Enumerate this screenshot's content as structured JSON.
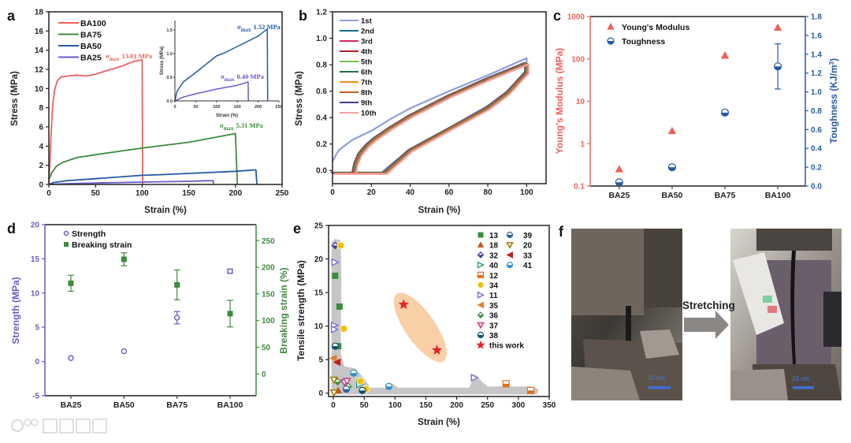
{
  "chart_data": [
    {
      "panel": "a",
      "type": "line",
      "xlabel": "Strain (%)",
      "ylabel": "Stress (MPa)",
      "xlim": [
        0,
        250
      ],
      "ylim": [
        0,
        18
      ],
      "xticks": [
        0,
        50,
        100,
        150,
        200,
        250
      ],
      "yticks": [
        0,
        2,
        4,
        6,
        8,
        10,
        12,
        14,
        16,
        18
      ],
      "series": [
        {
          "name": "BA100",
          "color": "#f0605a",
          "points": [
            [
              0,
              0
            ],
            [
              1,
              2
            ],
            [
              2,
              4.5
            ],
            [
              4,
              8
            ],
            [
              6,
              9.8
            ],
            [
              9,
              10.8
            ],
            [
              13,
              11.2
            ],
            [
              20,
              11.3
            ],
            [
              30,
              11.4
            ],
            [
              40,
              11.3
            ],
            [
              50,
              11.5
            ],
            [
              60,
              11.8
            ],
            [
              70,
              12.1
            ],
            [
              80,
              12.4
            ],
            [
              90,
              12.8
            ],
            [
              100,
              13.01
            ],
            [
              100.5,
              0
            ]
          ]
        },
        {
          "name": "BA75",
          "color": "#3d8b3d",
          "points": [
            [
              0,
              0.5
            ],
            [
              3,
              1.2
            ],
            [
              8,
              1.9
            ],
            [
              15,
              2.3
            ],
            [
              30,
              2.8
            ],
            [
              50,
              3.1
            ],
            [
              75,
              3.45
            ],
            [
              100,
              3.8
            ],
            [
              125,
              4.1
            ],
            [
              150,
              4.4
            ],
            [
              175,
              4.85
            ],
            [
              200,
              5.31
            ],
            [
              202,
              0
            ]
          ]
        },
        {
          "name": "BA50",
          "color": "#2559a5",
          "points": [
            [
              0,
              0
            ],
            [
              5,
              0.2
            ],
            [
              20,
              0.4
            ],
            [
              50,
              0.6
            ],
            [
              100,
              0.95
            ],
            [
              120,
              1.02
            ],
            [
              150,
              1.15
            ],
            [
              200,
              1.37
            ],
            [
              222,
              1.52
            ],
            [
              223,
              0
            ]
          ]
        },
        {
          "name": "BA25",
          "color": "#6a5ac8",
          "points": [
            [
              0,
              0
            ],
            [
              20,
              0.08
            ],
            [
              50,
              0.15
            ],
            [
              100,
              0.25
            ],
            [
              150,
              0.33
            ],
            [
              176,
              0.4
            ],
            [
              176.5,
              0
            ]
          ]
        }
      ],
      "annotations": [
        {
          "series": "BA100",
          "sym": "σ",
          "sub": "max",
          "text": "13.01 MPa"
        },
        {
          "series": "BA75",
          "sym": "σ",
          "sub": "max",
          "text": "5.31 MPa"
        }
      ],
      "inset": {
        "xlabel": "Strain (%)",
        "ylabel": "Stress (MPa)",
        "xlim": [
          0,
          250
        ],
        "ylim": [
          0,
          1.7
        ],
        "xticks": [
          0,
          50,
          100,
          150,
          200,
          250
        ],
        "yticks": [
          "0.0",
          "0.5",
          "1.0",
          "1.5"
        ],
        "series_shown": [
          "BA50",
          "BA25"
        ],
        "annotations": [
          {
            "series": "BA50",
            "sym": "σ",
            "sub": "max",
            "text": "1.52 MPa"
          },
          {
            "series": "BA25",
            "sym": "σ",
            "sub": "max",
            "text": "0.40 MPa"
          }
        ]
      }
    },
    {
      "panel": "b",
      "type": "line",
      "xlabel": "Strain (%)",
      "ylabel": "Stress (MPa)",
      "xlim": [
        0,
        110
      ],
      "ylim": [
        -0.1,
        1.2
      ],
      "xticks": [
        0,
        20,
        40,
        60,
        80,
        100
      ],
      "yticks": [
        "0.0",
        "0.2",
        "0.4",
        "0.6",
        "0.8",
        "1.0",
        "1.2"
      ],
      "first_cycle": [
        [
          0,
          0.07
        ],
        [
          3,
          0.15
        ],
        [
          10,
          0.23
        ],
        [
          20,
          0.3
        ],
        [
          30,
          0.39
        ],
        [
          40,
          0.47
        ],
        [
          60,
          0.6
        ],
        [
          80,
          0.72
        ],
        [
          100,
          0.85
        ],
        [
          100,
          0.74
        ],
        [
          90,
          0.6
        ],
        [
          80,
          0.49
        ],
        [
          60,
          0.32
        ],
        [
          40,
          0.16
        ],
        [
          28,
          0.02
        ],
        [
          25,
          -0.02
        ]
      ],
      "later_cycles": [
        [
          0,
          -0.02
        ],
        [
          11,
          -0.02
        ],
        [
          12,
          0.05
        ],
        [
          14,
          0.12
        ],
        [
          18,
          0.19
        ],
        [
          22,
          0.24
        ],
        [
          30,
          0.32
        ],
        [
          40,
          0.41
        ],
        [
          60,
          0.56
        ],
        [
          80,
          0.69
        ],
        [
          100,
          0.81
        ],
        [
          100,
          0.74
        ],
        [
          90,
          0.58
        ],
        [
          80,
          0.47
        ],
        [
          60,
          0.31
        ],
        [
          40,
          0.15
        ],
        [
          27,
          -0.02
        ],
        [
          0,
          -0.02
        ]
      ],
      "series": [
        {
          "name": "1st",
          "color": "#8e9ee0"
        },
        {
          "name": "2nd",
          "color": "#1b6a8c"
        },
        {
          "name": "3rd",
          "color": "#d42a6a"
        },
        {
          "name": "4th",
          "color": "#a8242a"
        },
        {
          "name": "5th",
          "color": "#74c34a"
        },
        {
          "name": "6th",
          "color": "#1f7040"
        },
        {
          "name": "7th",
          "color": "#f08a22"
        },
        {
          "name": "8th",
          "color": "#c25a1e"
        },
        {
          "name": "9th",
          "color": "#3e3e92"
        },
        {
          "name": "10th",
          "color": "#f4a2a0"
        }
      ]
    },
    {
      "panel": "c",
      "type": "scatter",
      "categories": [
        "BA25",
        "BA50",
        "BA75",
        "BA100"
      ],
      "ylabel": "Young's Modulus (MPa)",
      "yscale": "log",
      "ylim": [
        0.1,
        1000
      ],
      "yticks": [
        "0.1",
        "1",
        "10",
        "100",
        "1000"
      ],
      "y2label": "Toughness (KJ/m",
      "y2label_sup": "3",
      "y2label_end": ")",
      "y2lim": [
        0,
        1.8
      ],
      "y2ticks": [
        "0.0",
        "0.2",
        "0.4",
        "0.6",
        "0.8",
        "1.0",
        "1.2",
        "1.4",
        "1.6",
        "1.8"
      ],
      "series": [
        {
          "name": "Young's Modulus",
          "color": "#f0605a",
          "marker": "triangle",
          "axis": "left",
          "values": [
            0.25,
            2,
            120,
            550
          ]
        },
        {
          "name": "Toughness",
          "color": "#2559a5",
          "marker": "half-circle",
          "axis": "right",
          "values": [
            0.04,
            0.2,
            0.78,
            1.27
          ],
          "err": [
            0.01,
            0.01,
            0.02,
            0.24
          ]
        }
      ]
    },
    {
      "panel": "d",
      "type": "scatter",
      "categories": [
        "BA25",
        "BA50",
        "BA75",
        "BA100"
      ],
      "ylabel": "Strength (MPa)",
      "ylim": [
        -5,
        20
      ],
      "yticks": [
        "-5",
        "0",
        "5",
        "10",
        "15",
        "20"
      ],
      "y2label": "Breaking strain (%)",
      "y2lim": [
        -41,
        280
      ],
      "y2ticks": [
        "0",
        "50",
        "100",
        "150",
        "200",
        "250"
      ],
      "series": [
        {
          "name": "Strength",
          "color": "#6a5ac8",
          "marker": "open-circle",
          "axis": "left",
          "values": [
            0.5,
            1.5,
            6.4,
            13.2
          ],
          "err": [
            0.1,
            0.1,
            0.9,
            0.3
          ]
        },
        {
          "name": "Breaking strain",
          "color": "#3d8b3d",
          "marker": "square",
          "axis": "right",
          "values": [
            170,
            215,
            167,
            113
          ],
          "err": [
            15,
            12,
            28,
            25
          ]
        }
      ]
    },
    {
      "panel": "e",
      "type": "scatter",
      "xlabel": "Strain (%)",
      "ylabel": "Tensile strength (MPa)",
      "xlim": [
        -7.7,
        350
      ],
      "ylim": [
        -0.5,
        25
      ],
      "xticks": [
        0,
        50,
        100,
        150,
        200,
        250,
        300,
        350
      ],
      "yticks": [
        0,
        5,
        10,
        15,
        20,
        25
      ],
      "series": [
        {
          "name": "13",
          "color": "#3d8b3d",
          "marker": "square",
          "points": [
            [
              3,
              17.5
            ],
            [
              10,
              12.9
            ],
            [
              8,
              7
            ]
          ]
        },
        {
          "name": "18",
          "color": "#c0561c",
          "marker": "triangle",
          "points": [
            [
              8,
              0.4
            ]
          ]
        },
        {
          "name": "32",
          "color": "#3a3a9a",
          "marker": "diamond",
          "points": [
            [
              3,
              22
            ]
          ]
        },
        {
          "name": "40",
          "color": "#2fa070",
          "marker": "right-triangle",
          "points": [
            [
              43,
              1.3
            ]
          ]
        },
        {
          "name": "12",
          "color": "#e07020",
          "marker": "half-square",
          "points": [
            [
              280,
              1.4
            ],
            [
              320,
              0.4
            ]
          ]
        },
        {
          "name": "34",
          "color": "#f0c000",
          "marker": "hexagon",
          "points": [
            [
              12,
              22
            ],
            [
              17,
              9.6
            ],
            [
              44,
              1.8
            ],
            [
              53,
              0.6
            ]
          ]
        },
        {
          "name": "11",
          "color": "#7070d0",
          "marker": "right-triangle",
          "points": [
            [
              3,
              19.5
            ],
            [
              2,
              10.1
            ],
            [
              2,
              9.5
            ],
            [
              229,
              2.3
            ]
          ]
        },
        {
          "name": "35",
          "color": "#e08030",
          "marker": "left-triangle",
          "points": [
            [
              0,
              5.2
            ]
          ]
        },
        {
          "name": "36",
          "color": "#3d8b3d",
          "marker": "diamond",
          "points": [
            [
              7,
              1.7
            ],
            [
              24,
              1
            ]
          ]
        },
        {
          "name": "37",
          "color": "#d04080",
          "marker": "down-triangle",
          "points": [
            [
              18,
              1.6
            ],
            [
              22,
              1.8
            ]
          ]
        },
        {
          "name": "38",
          "color": "#105070",
          "marker": "half-circle",
          "points": [
            [
              3,
              7
            ],
            [
              47,
              0.4
            ]
          ]
        },
        {
          "name": "this work",
          "color": "#e8202a",
          "marker": "star",
          "points": [
            [
              114,
              13.2
            ],
            [
              168,
              6.4
            ]
          ]
        },
        {
          "name": "39",
          "color": "#3060a0",
          "marker": "half-circle",
          "points": [
            [
              21,
              0.6
            ]
          ]
        },
        {
          "name": "20",
          "color": "#a08000",
          "marker": "down-triangle",
          "points": [
            [
              1,
              0.1
            ],
            [
              1,
              2
            ]
          ]
        },
        {
          "name": "33",
          "color": "#c02020",
          "marker": "left-triangle",
          "points": [
            [
              6,
              4.6
            ]
          ]
        },
        {
          "name": "41",
          "color": "#3090d0",
          "marker": "half-circle",
          "points": [
            [
              33,
              3
            ],
            [
              90,
              1
            ]
          ]
        }
      ]
    }
  ],
  "photo_panel": {
    "panel": "f",
    "arrow_label": "Stretching",
    "scale_bar_left": "10 cm",
    "scale_bar_right": "10 cm"
  },
  "watermark": "大数跨境"
}
